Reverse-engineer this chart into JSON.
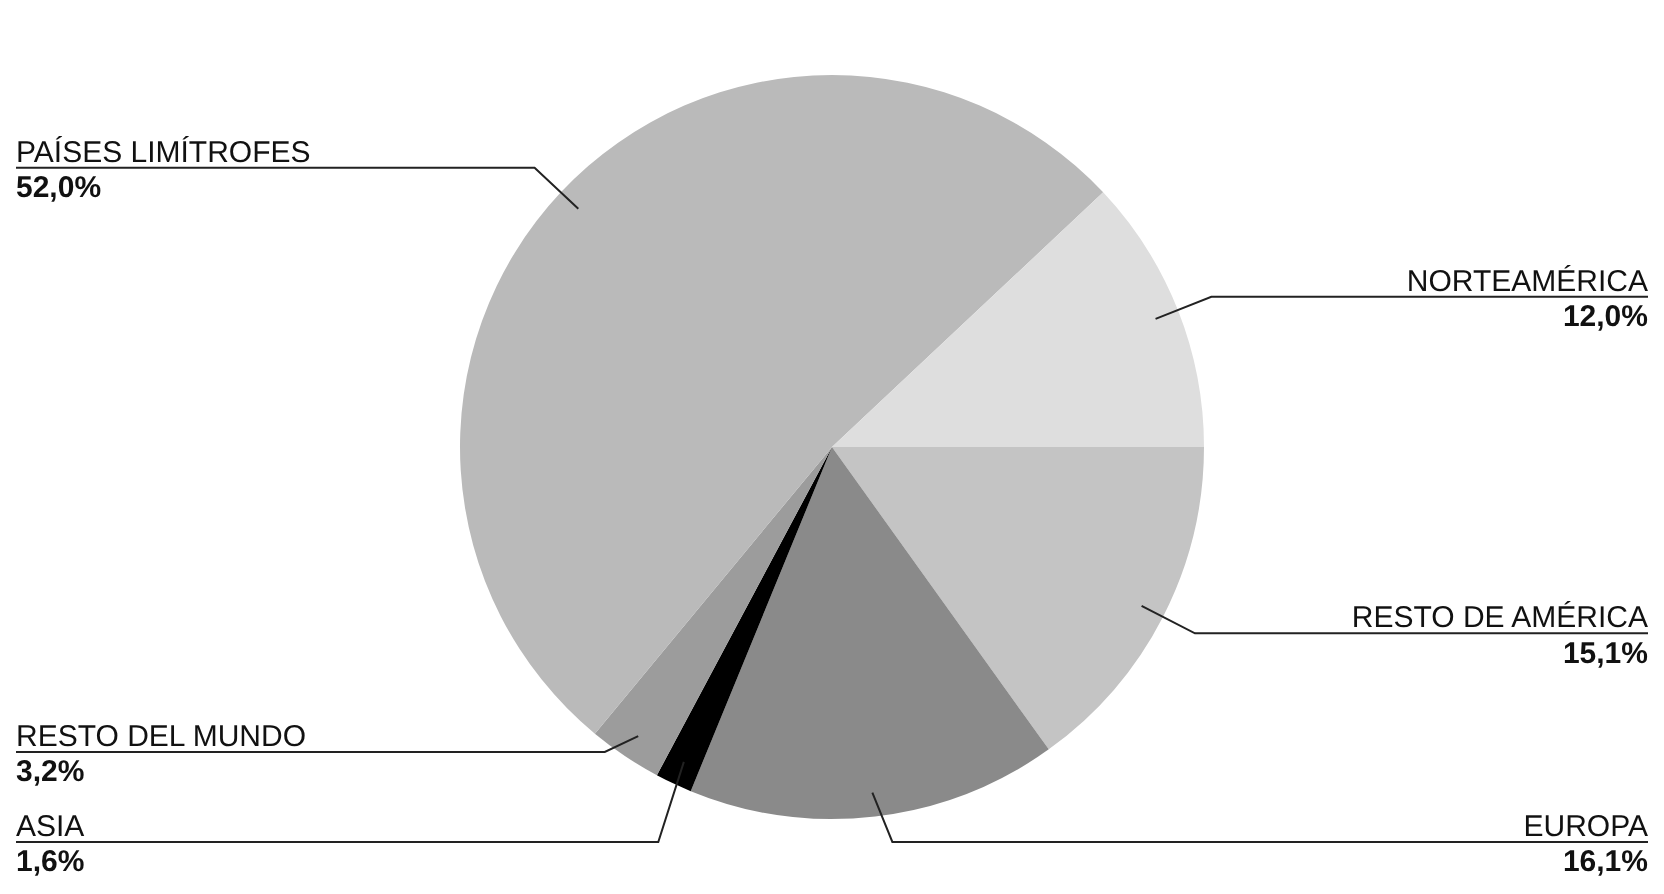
{
  "chart_data": {
    "type": "pie",
    "categories": [
      "RESTO DE AMÉRICA",
      "EUROPA",
      "ASIA",
      "RESTO DEL MUNDO",
      "PAÍSES LIMÍTROFES",
      "NORTEAMÉRICA"
    ],
    "values": [
      15.1,
      16.1,
      1.6,
      3.2,
      52.0,
      12.0
    ],
    "colors": [
      "#c4c4c4",
      "#8a8a8a",
      "#000000",
      "#9c9c9c",
      "#bababa",
      "#dedede"
    ],
    "value_labels": [
      "15,1%",
      "16,1%",
      "1,6%",
      "3,2%",
      "52,0%",
      "12,0%"
    ]
  }
}
